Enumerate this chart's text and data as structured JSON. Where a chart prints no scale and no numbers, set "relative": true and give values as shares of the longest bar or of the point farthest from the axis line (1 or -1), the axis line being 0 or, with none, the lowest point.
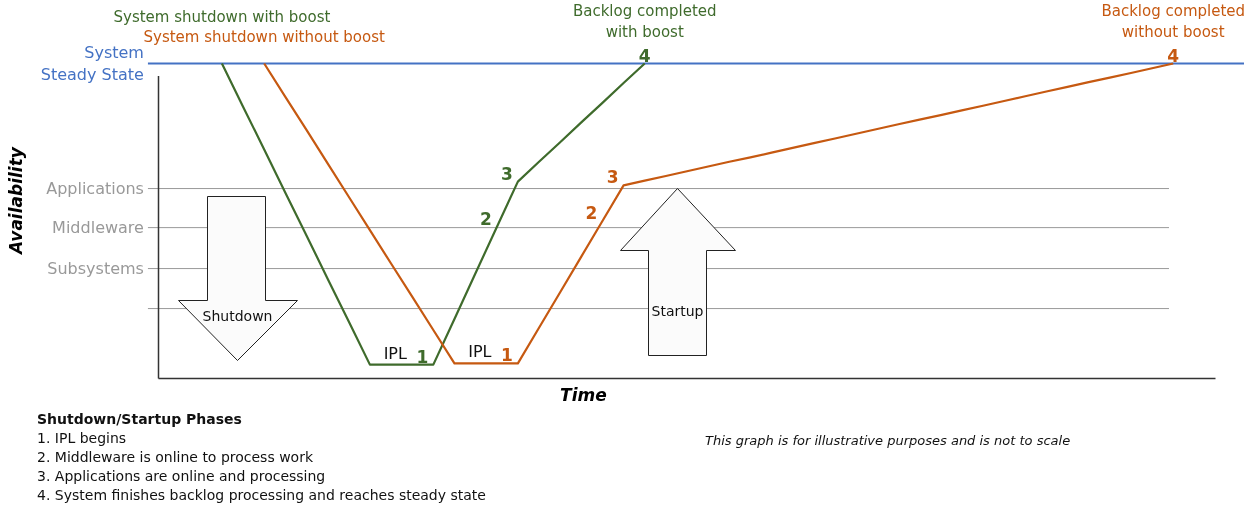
{
  "chart_data": {
    "type": "line",
    "relative": true,
    "xlabel": "Time",
    "categories": [
      null,
      null,
      null,
      null,
      null,
      null,
      null,
      null,
      null,
      null,
      null,
      null,
      null,
      null,
      null,
      null,
      null,
      null,
      null,
      null,
      null,
      null,
      null,
      null,
      null,
      null,
      null,
      null,
      null,
      null,
      null,
      null,
      null,
      null,
      null,
      null,
      null,
      null,
      null,
      null,
      null,
      null,
      null,
      null,
      null,
      null,
      null,
      null,
      null,
      null,
      null
    ],
    "series": [
      {
        "color": "#3f6b2c",
        "values": [
          null,
          null,
          null,
          1.0,
          0.863,
          0.727,
          0.59,
          0.454,
          0.317,
          0.181,
          0.044,
          0.044,
          0.044,
          0.044,
          0.189,
          0.335,
          0.48,
          0.625,
          0.688,
          0.75,
          0.813,
          0.875,
          0.938,
          1.0,
          null,
          null,
          null,
          null,
          null,
          null,
          null,
          null,
          null,
          null,
          null,
          null,
          null,
          null,
          null,
          null,
          null,
          null,
          null,
          null,
          null,
          null,
          null,
          null,
          null,
          null,
          null
        ]
      },
      {
        "color": "#c65911",
        "values": [
          null,
          null,
          null,
          null,
          null,
          1.0,
          0.894,
          0.789,
          0.683,
          0.577,
          0.471,
          0.365,
          0.26,
          0.154,
          0.048,
          0.048,
          0.048,
          0.048,
          0.161,
          0.274,
          0.387,
          0.5,
          0.613,
          0.628,
          0.643,
          0.658,
          0.673,
          0.688,
          0.702,
          0.717,
          0.732,
          0.747,
          0.762,
          0.777,
          0.792,
          0.807,
          0.822,
          0.836,
          0.851,
          0.866,
          0.881,
          0.896,
          0.911,
          0.926,
          0.941,
          0.955,
          0.97,
          0.985,
          1.0,
          null,
          null
        ]
      }
    ],
    "ref_lines": [
      {
        "axis": "y",
        "value": 1.0,
        "label": "System\nSteady State",
        "color": "#4472c4"
      },
      {
        "axis": "y",
        "value": 0.603,
        "label": "Applications",
        "color": "#999999"
      },
      {
        "axis": "y",
        "value": 0.479,
        "label": "Middleware",
        "color": "#999999"
      },
      {
        "axis": "y",
        "value": 0.349,
        "label": "Subsystems",
        "color": "#999999"
      },
      {
        "axis": "y",
        "value": 0.222,
        "label": null,
        "color": "#999999"
      }
    ],
    "annotations": [
      "System shutdown without boost",
      "System shutdown with boost",
      "4",
      "Backlog completed\nwith boost",
      "4",
      "Backlog completed\nwithout boost",
      "1",
      "2",
      "3",
      "1",
      "2",
      "3",
      "IPL",
      "IPL",
      "Shutdown",
      "Startup",
      "Availability",
      "This graph is for illustrative purposes and is not to scale",
      "Shutdown/Startup Phases",
      "1.  IPL begins",
      "2.  Middleware is online to process work",
      "3.  Applications are online and processing",
      "4.  System finishes backlog processing and reaches steady state"
    ]
  }
}
